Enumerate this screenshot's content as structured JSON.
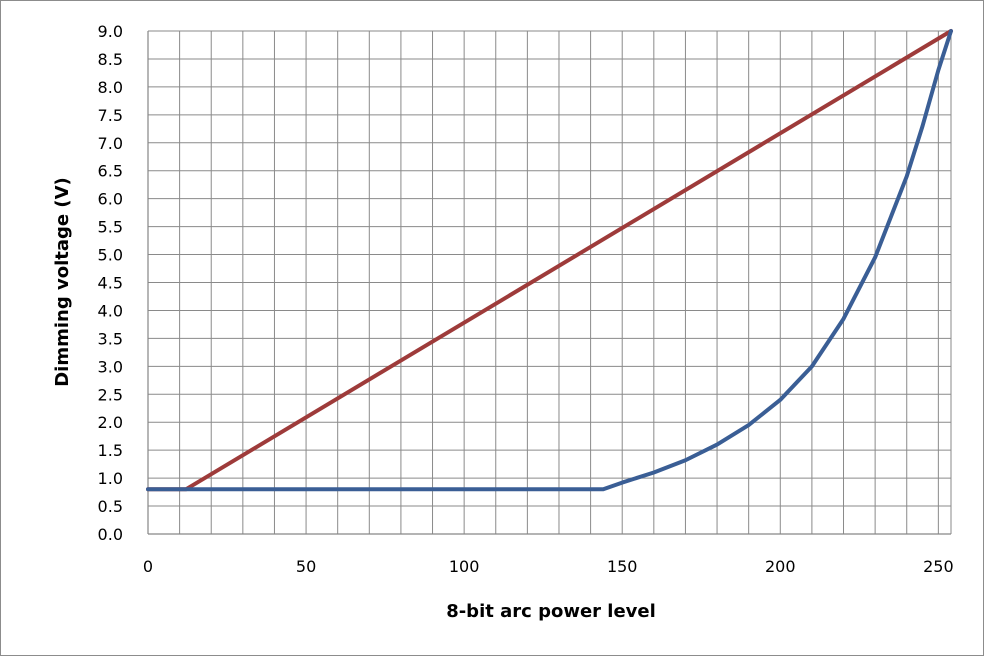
{
  "chart_data": {
    "type": "line",
    "title": "",
    "xlabel": "8-bit arc power level",
    "ylabel": "Dimming voltage (V)",
    "xlim": [
      0,
      254
    ],
    "ylim": [
      0,
      9
    ],
    "x_ticks": [
      0,
      50,
      100,
      150,
      200,
      250
    ],
    "x_minor_step": 10,
    "y_ticks": [
      "0.0",
      "0.5",
      "1.0",
      "1.5",
      "2.0",
      "2.5",
      "3.0",
      "3.5",
      "4.0",
      "4.5",
      "5.0",
      "5.5",
      "6.0",
      "6.5",
      "7.0",
      "7.5",
      "8.0",
      "8.5",
      "9.0"
    ],
    "grid": true,
    "legend": "none",
    "series": [
      {
        "color": "#9e3b3a",
        "x": [
          0,
          12,
          254
        ],
        "y": [
          0.8,
          0.8,
          9.0
        ]
      },
      {
        "color": "#3a5e95",
        "x": [
          0,
          144,
          150,
          160,
          170,
          180,
          190,
          200,
          210,
          220,
          230,
          240,
          245,
          250,
          254
        ],
        "y": [
          0.8,
          0.8,
          0.92,
          1.1,
          1.32,
          1.6,
          1.95,
          2.4,
          3.0,
          3.85,
          4.95,
          6.4,
          7.3,
          8.3,
          9.0
        ]
      }
    ]
  }
}
